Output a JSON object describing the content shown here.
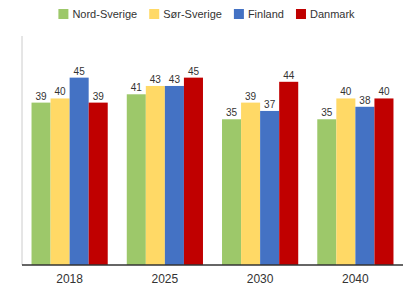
{
  "chart_data": {
    "type": "bar",
    "categories": [
      "2018",
      "2025",
      "2030",
      "2040"
    ],
    "series": [
      {
        "name": "Nord-Sverige",
        "color": "#9DC86A",
        "values": [
          39,
          41,
          35,
          35
        ]
      },
      {
        "name": "Sør-Sverige",
        "color": "#FFD966",
        "values": [
          40,
          43,
          39,
          40
        ]
      },
      {
        "name": "Finland",
        "color": "#4472C4",
        "values": [
          45,
          43,
          37,
          38
        ]
      },
      {
        "name": "Danmark",
        "color": "#C00000",
        "values": [
          39,
          45,
          44,
          40
        ]
      }
    ],
    "ylim": [
      0,
      55
    ],
    "data_labels": true,
    "tick_labels": "x",
    "legend": "top",
    "grid": false
  }
}
